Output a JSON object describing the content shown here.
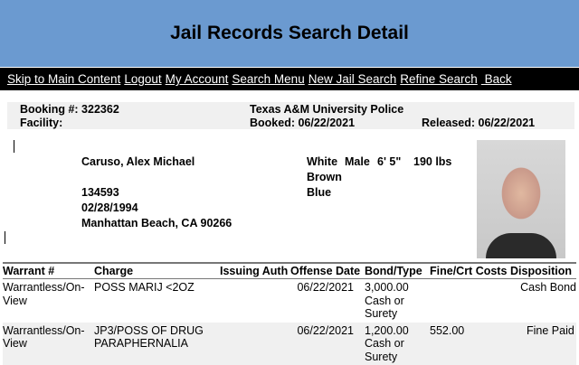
{
  "title": "Jail Records Search Detail",
  "nav": [
    "Skip to Main Content",
    "Logout",
    "My Account",
    "Search Menu",
    "New Jail Search",
    "Refine Search",
    " Back"
  ],
  "booking": {
    "booking": "Booking #: 322362",
    "facility": "Facility:",
    "agency": "Texas A&M University Police",
    "booked": "Booked: 06/22/2021",
    "released": "Released: 06/22/2021"
  },
  "person": {
    "name": "Caruso, Alex Michael",
    "id": "134593",
    "dob": "02/28/1994",
    "address": "Manhattan Beach, CA 90266",
    "race": "White",
    "sex": "Male",
    "height": "6' 5\"",
    "weight": "190 lbs",
    "hair": "Brown",
    "eyes": "Blue"
  },
  "table": {
    "headers": [
      "Warrant #",
      "Charge",
      "Issuing Auth",
      "Offense Date",
      "Bond/Type",
      "Fine/Crt Costs",
      "Disposition"
    ],
    "rows": [
      {
        "warrant": "Warrantless/On-View",
        "charge": "POSS MARIJ <2OZ",
        "auth": "",
        "date": "06/22/2021",
        "bond": "3,000.00 Cash or Surety",
        "fine": "",
        "disposition": "Cash Bond"
      },
      {
        "warrant": "Warrantless/On-View",
        "charge": "JP3/POSS OF DRUG PARAPHERNALIA",
        "auth": "",
        "date": "06/22/2021",
        "bond": "1,200.00 Cash or Surety",
        "fine": "552.00",
        "disposition": "Fine Paid"
      }
    ]
  }
}
